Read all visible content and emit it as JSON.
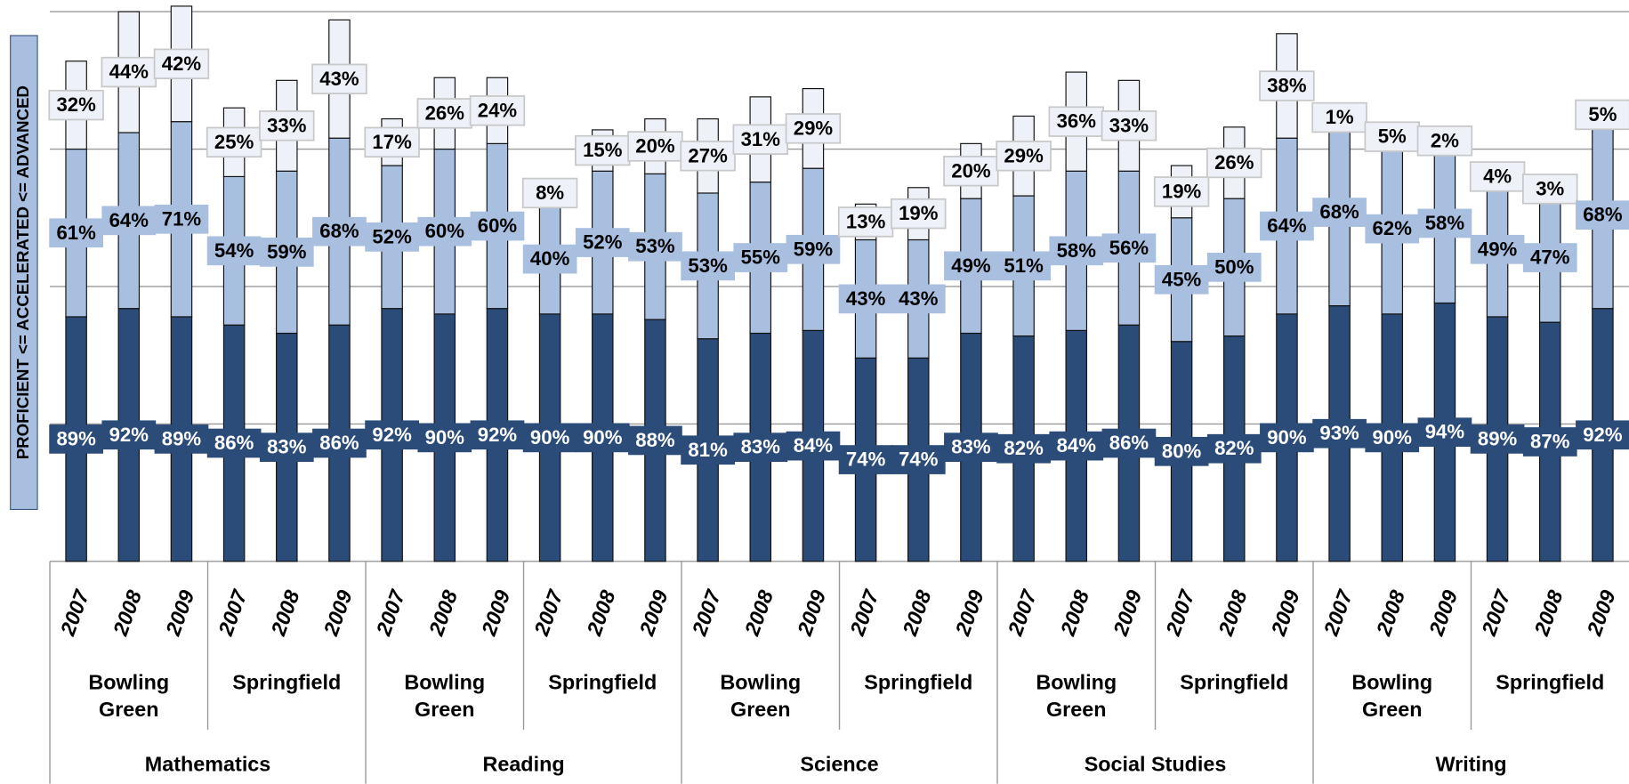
{
  "chart_data": {
    "type": "stacked_bar",
    "y_axis_title": "PROFICIENT <= ACCELERATED <= ADVANCED",
    "categories": [
      "2007",
      "2008",
      "2009",
      "2007",
      "2008",
      "2009",
      "2007",
      "2008",
      "2009",
      "2007",
      "2008",
      "2009",
      "2007",
      "2008",
      "2009",
      "2007",
      "2008",
      "2009",
      "2007",
      "2008",
      "2009",
      "2007",
      "2008",
      "2009",
      "2007",
      "2008",
      "2009",
      "2007",
      "2008",
      "2009"
    ],
    "districts": [
      "Bowling Green",
      "Springfield",
      "Bowling Green",
      "Springfield",
      "Bowling Green",
      "Springfield",
      "Bowling Green",
      "Springfield",
      "Bowling Green",
      "Springfield"
    ],
    "subjects": [
      "Mathematics",
      "Reading",
      "Science",
      "Social Studies",
      "Writing"
    ],
    "series": [
      {
        "color": "#2b4b78",
        "label_text_color": "#ffffff",
        "values": [
          89,
          92,
          89,
          86,
          83,
          86,
          92,
          90,
          92,
          90,
          90,
          88,
          81,
          83,
          84,
          74,
          74,
          83,
          82,
          84,
          86,
          80,
          82,
          90,
          93,
          90,
          94,
          89,
          87,
          92
        ],
        "value_labels": [
          "89%",
          "92%",
          "89%",
          "86%",
          "83%",
          "86%",
          "92%",
          "90%",
          "92%",
          "90%",
          "90%",
          "88%",
          "81%",
          "83%",
          "84%",
          "74%",
          "74%",
          "83%",
          "82%",
          "84%",
          "86%",
          "80%",
          "82%",
          "90%",
          "93%",
          "90%",
          "94%",
          "89%",
          "87%",
          "92%"
        ]
      },
      {
        "color": "#a8bfe0",
        "label_text_color": "#000000",
        "values": [
          61,
          64,
          71,
          54,
          59,
          68,
          52,
          60,
          60,
          40,
          52,
          53,
          53,
          55,
          59,
          43,
          43,
          49,
          51,
          58,
          56,
          45,
          50,
          64,
          68,
          62,
          58,
          49,
          47,
          68
        ],
        "value_labels": [
          "61%",
          "64%",
          "71%",
          "54%",
          "59%",
          "68%",
          "52%",
          "60%",
          "60%",
          "40%",
          "52%",
          "53%",
          "53%",
          "55%",
          "59%",
          "43%",
          "43%",
          "49%",
          "51%",
          "58%",
          "56%",
          "45%",
          "50%",
          "64%",
          "68%",
          "62%",
          "58%",
          "49%",
          "47%",
          "68%"
        ]
      },
      {
        "color": "#eef2f8",
        "label_text_color": "#000000",
        "values": [
          32,
          44,
          42,
          25,
          33,
          43,
          17,
          26,
          24,
          8,
          15,
          20,
          27,
          31,
          29,
          13,
          19,
          20,
          29,
          36,
          33,
          19,
          26,
          38,
          1,
          5,
          2,
          4,
          3,
          5
        ],
        "value_labels": [
          "32%",
          "44%",
          "42%",
          "25%",
          "33%",
          "43%",
          "17%",
          "26%",
          "24%",
          "8%",
          "15%",
          "20%",
          "27%",
          "31%",
          "29%",
          "13%",
          "19%",
          "20%",
          "29%",
          "36%",
          "33%",
          "19%",
          "26%",
          "38%",
          "1%",
          "5%",
          "2%",
          "4%",
          "3%",
          "5%"
        ]
      }
    ],
    "ylim": [
      0,
      200
    ],
    "yticks": [
      0,
      50,
      100,
      150,
      200
    ],
    "grid": true
  }
}
